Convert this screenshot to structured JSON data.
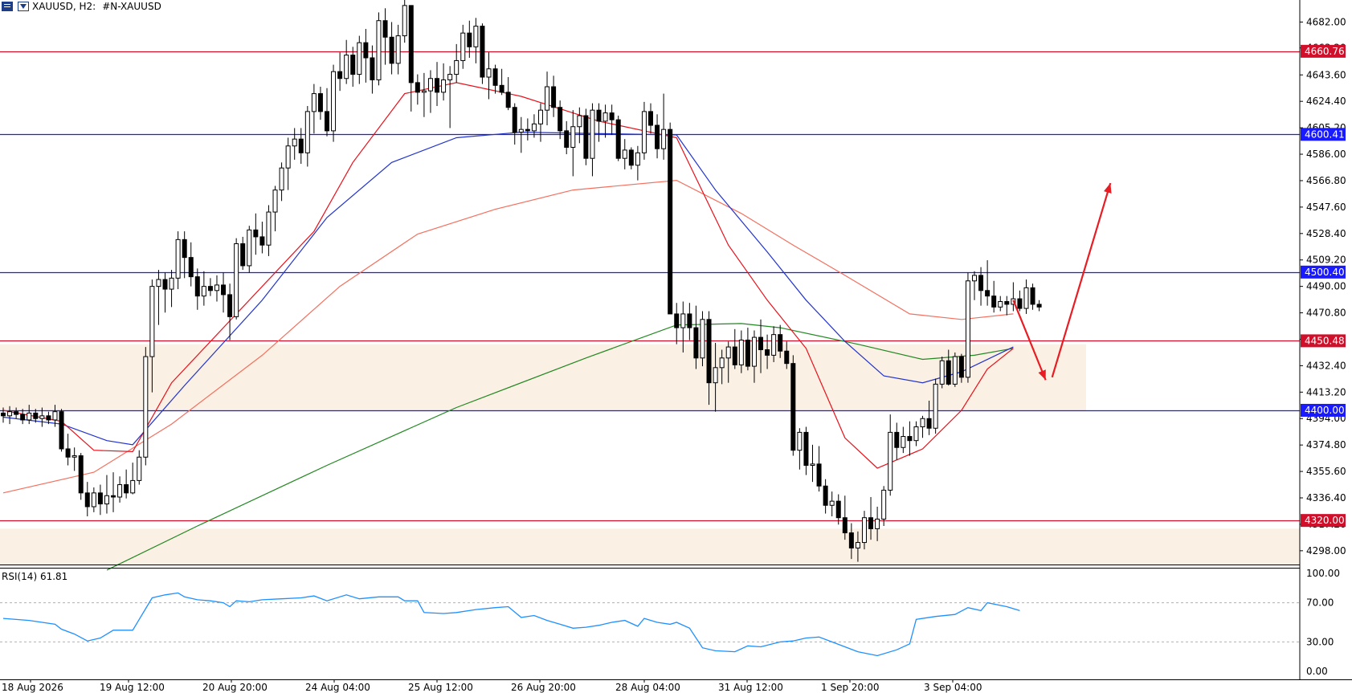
{
  "header": {
    "symbol_label": "XAUUSD, H2:",
    "description": "#N-XAUUSD",
    "menu_icon": "chart-menu-icon",
    "dropdown_icon": "one-click-trading-icon"
  },
  "rsi": {
    "label": "RSI(14) 61.81",
    "levels": [
      "100.00",
      "70.00",
      "30.00",
      "0.00"
    ]
  },
  "colors": {
    "candle": "#000000",
    "ema_fast": "#e8101a",
    "ema_mid": "#2233cc",
    "ema_slow": "#f3705f",
    "ema_long": "#228822",
    "rsi_line": "#1e90ff",
    "zone": "#fbf0e4",
    "arrow": "#e81c23"
  },
  "price_labels": [
    "4682.00",
    "4663.20",
    "4643.60",
    "4624.40",
    "4605.20",
    "4586.00",
    "4566.80",
    "4547.60",
    "4528.40",
    "4509.20",
    "4490.00",
    "4470.80",
    "4451.60",
    "4432.40",
    "4413.20",
    "4394.00",
    "4374.80",
    "4355.60",
    "4336.40",
    "4317.20",
    "4298.00"
  ],
  "level_tags": [
    {
      "text": "4660.76",
      "value": 4660.76,
      "color": "#d0102a"
    },
    {
      "text": "4600.41",
      "value": 4600.41,
      "color": "#1a1aff"
    },
    {
      "text": "4500.40",
      "value": 4500.4,
      "color": "#1a1aff"
    },
    {
      "text": "4450.48",
      "value": 4450.48,
      "color": "#d0102a"
    },
    {
      "text": "4400.00",
      "value": 4400.0,
      "color": "#1a1aff"
    },
    {
      "text": "4320.00",
      "value": 4320.0,
      "color": "#d0102a"
    }
  ],
  "time_labels": [
    "18 Aug 2026",
    "19 Aug 12:00",
    "20 Aug 20:00",
    "24 Aug 04:00",
    "25 Aug 12:00",
    "26 Aug 20:00",
    "28 Aug 04:00",
    "31 Aug 12:00",
    "1 Sep 20:00",
    "3 Sep 04:00"
  ],
  "chart_data": {
    "type": "candlestick",
    "symbol": "XAUUSD",
    "timeframe": "H2",
    "ylim": [
      4288,
      4698
    ],
    "horizontal_levels": [
      4660.76,
      4600.41,
      4500.4,
      4450.48,
      4400.0,
      4320.0
    ],
    "zones": [
      [
        4400.0,
        4448.0
      ],
      [
        4288.0,
        4314.0
      ]
    ],
    "candles": [
      [
        4398,
        4402,
        4391,
        4396
      ],
      [
        4396,
        4403,
        4390,
        4399
      ],
      [
        4399,
        4402,
        4394,
        4397
      ],
      [
        4397,
        4401,
        4390,
        4393
      ],
      [
        4393,
        4404,
        4390,
        4398
      ],
      [
        4398,
        4401,
        4391,
        4394
      ],
      [
        4394,
        4402,
        4388,
        4396
      ],
      [
        4396,
        4399,
        4390,
        4393
      ],
      [
        4393,
        4404,
        4388,
        4399
      ],
      [
        4399,
        4401,
        4370,
        4372
      ],
      [
        4372,
        4383,
        4360,
        4366
      ],
      [
        4366,
        4373,
        4356,
        4367
      ],
      [
        4367,
        4369,
        4335,
        4340
      ],
      [
        4340,
        4348,
        4323,
        4330
      ],
      [
        4330,
        4344,
        4326,
        4340
      ],
      [
        4340,
        4346,
        4324,
        4332
      ],
      [
        4332,
        4353,
        4325,
        4338
      ],
      [
        4338,
        4355,
        4326,
        4337
      ],
      [
        4337,
        4352,
        4333,
        4346
      ],
      [
        4346,
        4357,
        4336,
        4340
      ],
      [
        4340,
        4362,
        4339,
        4349
      ],
      [
        4349,
        4371,
        4346,
        4366
      ],
      [
        4366,
        4446,
        4360,
        4439
      ],
      [
        4439,
        4495,
        4413,
        4490
      ],
      [
        4490,
        4502,
        4462,
        4495
      ],
      [
        4495,
        4500,
        4471,
        4488
      ],
      [
        4488,
        4502,
        4475,
        4496
      ],
      [
        4496,
        4530,
        4488,
        4524
      ],
      [
        4524,
        4530,
        4496,
        4511
      ],
      [
        4511,
        4522,
        4490,
        4497
      ],
      [
        4497,
        4503,
        4473,
        4483
      ],
      [
        4483,
        4501,
        4476,
        4490
      ],
      [
        4490,
        4496,
        4483,
        4487
      ],
      [
        4487,
        4498,
        4479,
        4491
      ],
      [
        4491,
        4500,
        4471,
        4484
      ],
      [
        4484,
        4492,
        4451,
        4468
      ],
      [
        4468,
        4525,
        4466,
        4521
      ],
      [
        4521,
        4526,
        4502,
        4505
      ],
      [
        4505,
        4534,
        4500,
        4531
      ],
      [
        4531,
        4543,
        4513,
        4526
      ],
      [
        4526,
        4537,
        4514,
        4520
      ],
      [
        4520,
        4549,
        4512,
        4544
      ],
      [
        4544,
        4563,
        4530,
        4560
      ],
      [
        4560,
        4580,
        4552,
        4576
      ],
      [
        4576,
        4598,
        4560,
        4592
      ],
      [
        4592,
        4605,
        4582,
        4597
      ],
      [
        4597,
        4605,
        4579,
        4587
      ],
      [
        4587,
        4621,
        4577,
        4617
      ],
      [
        4617,
        4637,
        4601,
        4630
      ],
      [
        4630,
        4635,
        4611,
        4617
      ],
      [
        4617,
        4634,
        4599,
        4603
      ],
      [
        4603,
        4651,
        4595,
        4646
      ],
      [
        4646,
        4660,
        4632,
        4641
      ],
      [
        4641,
        4669,
        4637,
        4658
      ],
      [
        4658,
        4664,
        4635,
        4644
      ],
      [
        4644,
        4672,
        4637,
        4667
      ],
      [
        4667,
        4677,
        4638,
        4656
      ],
      [
        4656,
        4665,
        4630,
        4640
      ],
      [
        4640,
        4689,
        4636,
        4683
      ],
      [
        4683,
        4692,
        4651,
        4671
      ],
      [
        4671,
        4682,
        4644,
        4652
      ],
      [
        4652,
        4680,
        4644,
        4672
      ],
      [
        4672,
        4707,
        4667,
        4694
      ],
      [
        4694,
        4694,
        4617,
        4638
      ],
      [
        4638,
        4644,
        4622,
        4631
      ],
      [
        4631,
        4645,
        4613,
        4632
      ],
      [
        4632,
        4647,
        4616,
        4641
      ],
      [
        4641,
        4653,
        4621,
        4631
      ],
      [
        4631,
        4652,
        4625,
        4640
      ],
      [
        4640,
        4650,
        4605,
        4644
      ],
      [
        4644,
        4666,
        4638,
        4654
      ],
      [
        4654,
        4680,
        4648,
        4674
      ],
      [
        4674,
        4683,
        4656,
        4664
      ],
      [
        4664,
        4685,
        4652,
        4679
      ],
      [
        4679,
        4681,
        4637,
        4642
      ],
      [
        4642,
        4660,
        4626,
        4648
      ],
      [
        4648,
        4651,
        4630,
        4636
      ],
      [
        4636,
        4648,
        4629,
        4631
      ],
      [
        4631,
        4642,
        4618,
        4620
      ],
      [
        4620,
        4623,
        4593,
        4602
      ],
      [
        4602,
        4613,
        4587,
        4604
      ],
      [
        4604,
        4612,
        4596,
        4603
      ],
      [
        4603,
        4615,
        4598,
        4608
      ],
      [
        4608,
        4623,
        4595,
        4618
      ],
      [
        4618,
        4646,
        4607,
        4635
      ],
      [
        4635,
        4643,
        4613,
        4620
      ],
      [
        4620,
        4625,
        4597,
        4603
      ],
      [
        4603,
        4610,
        4586,
        4591
      ],
      [
        4591,
        4618,
        4570,
        4606
      ],
      [
        4606,
        4620,
        4594,
        4614
      ],
      [
        4614,
        4619,
        4578,
        4583
      ],
      [
        4583,
        4623,
        4570,
        4618
      ],
      [
        4618,
        4623,
        4595,
        4610
      ],
      [
        4610,
        4622,
        4598,
        4616
      ],
      [
        4616,
        4622,
        4600,
        4611
      ],
      [
        4611,
        4614,
        4581,
        4583
      ],
      [
        4583,
        4597,
        4575,
        4589
      ],
      [
        4589,
        4591,
        4575,
        4578
      ],
      [
        4578,
        4592,
        4567,
        4587
      ],
      [
        4587,
        4624,
        4582,
        4617
      ],
      [
        4617,
        4623,
        4601,
        4607
      ],
      [
        4607,
        4615,
        4583,
        4590
      ],
      [
        4590,
        4630,
        4582,
        4604
      ],
      [
        4604,
        4609,
        4470,
        4470
      ],
      [
        4470,
        4478,
        4448,
        4460
      ],
      [
        4460,
        4479,
        4442,
        4470
      ],
      [
        4470,
        4478,
        4451,
        4460
      ],
      [
        4460,
        4476,
        4430,
        4438
      ],
      [
        4438,
        4472,
        4432,
        4466
      ],
      [
        4466,
        4472,
        4404,
        4420
      ],
      [
        4420,
        4449,
        4399,
        4431
      ],
      [
        4431,
        4444,
        4419,
        4438
      ],
      [
        4438,
        4450,
        4420,
        4446
      ],
      [
        4446,
        4459,
        4430,
        4433
      ],
      [
        4433,
        4458,
        4427,
        4451
      ],
      [
        4451,
        4460,
        4429,
        4432
      ],
      [
        4432,
        4458,
        4420,
        4453
      ],
      [
        4453,
        4466,
        4427,
        4444
      ],
      [
        4444,
        4455,
        4430,
        4440
      ],
      [
        4440,
        4461,
        4435,
        4455
      ],
      [
        4455,
        4462,
        4438,
        4443
      ],
      [
        4443,
        4450,
        4430,
        4434
      ],
      [
        4434,
        4440,
        4367,
        4371
      ],
      [
        4371,
        4387,
        4357,
        4384
      ],
      [
        4384,
        4388,
        4353,
        4360
      ],
      [
        4360,
        4375,
        4348,
        4361
      ],
      [
        4361,
        4374,
        4341,
        4345
      ],
      [
        4345,
        4350,
        4325,
        4331
      ],
      [
        4331,
        4341,
        4323,
        4334
      ],
      [
        4334,
        4339,
        4317,
        4322
      ],
      [
        4322,
        4338,
        4306,
        4311
      ],
      [
        4311,
        4318,
        4292,
        4300
      ],
      [
        4300,
        4312,
        4290,
        4304
      ],
      [
        4304,
        4327,
        4299,
        4322
      ],
      [
        4322,
        4337,
        4306,
        4314
      ],
      [
        4314,
        4330,
        4305,
        4321
      ],
      [
        4321,
        4345,
        4316,
        4342
      ],
      [
        4342,
        4397,
        4338,
        4384
      ],
      [
        4384,
        4391,
        4364,
        4373
      ],
      [
        4373,
        4388,
        4369,
        4381
      ],
      [
        4381,
        4392,
        4367,
        4378
      ],
      [
        4378,
        4392,
        4374,
        4388
      ],
      [
        4388,
        4396,
        4380,
        4394
      ],
      [
        4394,
        4407,
        4382,
        4387
      ],
      [
        4387,
        4423,
        4383,
        4419
      ],
      [
        4419,
        4439,
        4416,
        4436
      ],
      [
        4436,
        4444,
        4418,
        4419
      ],
      [
        4419,
        4442,
        4417,
        4439
      ],
      [
        4439,
        4441,
        4420,
        4424
      ],
      [
        4424,
        4500,
        4420,
        4494
      ],
      [
        4494,
        4501,
        4480,
        4498
      ],
      [
        4498,
        4504,
        4476,
        4487
      ],
      [
        4487,
        4509,
        4476,
        4483
      ],
      [
        4483,
        4494,
        4471,
        4475
      ],
      [
        4475,
        4483,
        4472,
        4479
      ],
      [
        4479,
        4483,
        4469,
        4477
      ],
      [
        4477,
        4493,
        4472,
        4481
      ],
      [
        4481,
        4487,
        4472,
        4474
      ],
      [
        4474,
        4495,
        4470,
        4489
      ],
      [
        4489,
        4492,
        4473,
        4477
      ],
      [
        4477,
        4480,
        4472,
        4475
      ]
    ],
    "ema_fast": [
      [
        0,
        4400
      ],
      [
        9,
        4392
      ],
      [
        14,
        4371
      ],
      [
        20,
        4370
      ],
      [
        26,
        4420
      ],
      [
        36,
        4470
      ],
      [
        48,
        4530
      ],
      [
        54,
        4580
      ],
      [
        62,
        4630
      ],
      [
        70,
        4638
      ],
      [
        80,
        4628
      ],
      [
        92,
        4610
      ],
      [
        104,
        4598
      ],
      [
        112,
        4520
      ],
      [
        118,
        4480
      ],
      [
        124,
        4445
      ],
      [
        130,
        4380
      ],
      [
        135,
        4358
      ],
      [
        142,
        4372
      ],
      [
        148,
        4400
      ],
      [
        152,
        4430
      ],
      [
        156,
        4445
      ]
    ],
    "ema_mid": [
      [
        0,
        4395
      ],
      [
        9,
        4390
      ],
      [
        16,
        4378
      ],
      [
        20,
        4375
      ],
      [
        28,
        4418
      ],
      [
        40,
        4480
      ],
      [
        50,
        4540
      ],
      [
        60,
        4580
      ],
      [
        70,
        4598
      ],
      [
        80,
        4602
      ],
      [
        104,
        4600
      ],
      [
        110,
        4560
      ],
      [
        118,
        4515
      ],
      [
        124,
        4480
      ],
      [
        130,
        4450
      ],
      [
        136,
        4425
      ],
      [
        142,
        4420
      ],
      [
        148,
        4428
      ],
      [
        156,
        4446
      ]
    ],
    "ema_slow": [
      [
        0,
        4340
      ],
      [
        14,
        4355
      ],
      [
        26,
        4390
      ],
      [
        40,
        4440
      ],
      [
        52,
        4490
      ],
      [
        64,
        4528
      ],
      [
        76,
        4546
      ],
      [
        88,
        4560
      ],
      [
        104,
        4567
      ],
      [
        114,
        4543
      ],
      [
        122,
        4520
      ],
      [
        130,
        4498
      ],
      [
        140,
        4470
      ],
      [
        148,
        4466
      ],
      [
        156,
        4470
      ]
    ],
    "ema_long": [
      [
        16,
        4284
      ],
      [
        30,
        4316
      ],
      [
        50,
        4360
      ],
      [
        70,
        4402
      ],
      [
        90,
        4438
      ],
      [
        104,
        4462
      ],
      [
        114,
        4463
      ],
      [
        120,
        4460
      ],
      [
        132,
        4448
      ],
      [
        142,
        4437
      ],
      [
        150,
        4440
      ],
      [
        156,
        4445
      ]
    ],
    "rsi": [
      [
        0,
        54
      ],
      [
        4,
        52
      ],
      [
        8,
        48
      ],
      [
        9,
        43
      ],
      [
        11,
        38
      ],
      [
        13,
        31
      ],
      [
        15,
        34
      ],
      [
        17,
        42
      ],
      [
        20,
        42
      ],
      [
        21,
        53
      ],
      [
        23,
        75
      ],
      [
        25,
        78
      ],
      [
        27,
        80
      ],
      [
        28,
        76
      ],
      [
        30,
        73
      ],
      [
        32,
        72
      ],
      [
        34,
        70
      ],
      [
        35,
        66
      ],
      [
        36,
        72
      ],
      [
        38,
        71
      ],
      [
        40,
        73
      ],
      [
        43,
        74
      ],
      [
        46,
        75
      ],
      [
        48,
        77
      ],
      [
        50,
        72
      ],
      [
        53,
        78
      ],
      [
        55,
        74
      ],
      [
        58,
        76
      ],
      [
        61,
        76
      ],
      [
        62,
        72
      ],
      [
        64,
        72
      ],
      [
        65,
        60
      ],
      [
        68,
        59
      ],
      [
        70,
        60
      ],
      [
        73,
        63
      ],
      [
        76,
        65
      ],
      [
        78,
        66
      ],
      [
        80,
        55
      ],
      [
        82,
        57
      ],
      [
        84,
        52
      ],
      [
        86,
        48
      ],
      [
        88,
        44
      ],
      [
        90,
        45
      ],
      [
        92,
        47
      ],
      [
        94,
        50
      ],
      [
        96,
        52
      ],
      [
        98,
        46
      ],
      [
        99,
        54
      ],
      [
        101,
        50
      ],
      [
        103,
        48
      ],
      [
        104,
        50
      ],
      [
        106,
        44
      ],
      [
        108,
        24
      ],
      [
        110,
        21
      ],
      [
        113,
        20
      ],
      [
        115,
        26
      ],
      [
        117,
        25
      ],
      [
        120,
        30
      ],
      [
        122,
        31
      ],
      [
        124,
        34
      ],
      [
        126,
        35
      ],
      [
        128,
        30
      ],
      [
        130,
        25
      ],
      [
        132,
        20
      ],
      [
        135,
        16
      ],
      [
        138,
        22
      ],
      [
        140,
        28
      ],
      [
        141,
        53
      ],
      [
        144,
        56
      ],
      [
        147,
        58
      ],
      [
        149,
        65
      ],
      [
        151,
        62
      ],
      [
        152,
        70
      ],
      [
        155,
        66
      ],
      [
        157,
        62
      ]
    ],
    "arrows": [
      [
        [
          156,
          4480
        ],
        [
          161,
          4422
        ]
      ],
      [
        [
          162,
          4424
        ],
        [
          171,
          4565
        ]
      ]
    ]
  }
}
